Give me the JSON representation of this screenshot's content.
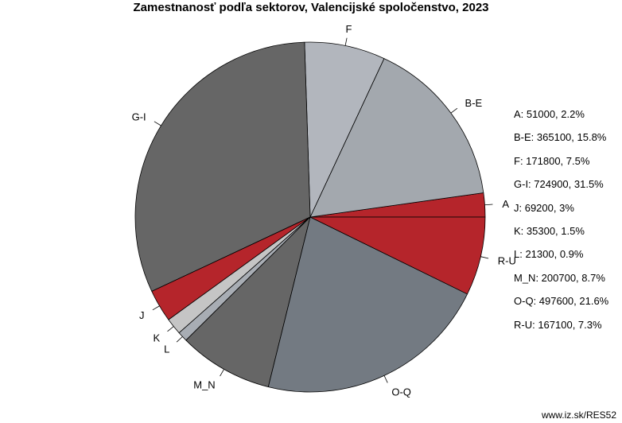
{
  "chart_data": {
    "type": "pie",
    "title": "Zamestnanosť podľa sektorov, Valencijské spoločenstvo, 2023",
    "slices": [
      {
        "label": "A",
        "value": 51000,
        "percent": "2.2%",
        "color": "#b5252b"
      },
      {
        "label": "B-E",
        "value": 365100,
        "percent": "15.8%",
        "color": "#a3a8ae"
      },
      {
        "label": "F",
        "value": 171800,
        "percent": "7.5%",
        "color": "#b2b6bd"
      },
      {
        "label": "G-I",
        "value": 724900,
        "percent": "31.5%",
        "color": "#666666"
      },
      {
        "label": "J",
        "value": 69200,
        "percent": "3%",
        "color": "#b5252b"
      },
      {
        "label": "K",
        "value": 35300,
        "percent": "1.5%",
        "color": "#c5c5c5"
      },
      {
        "label": "L",
        "value": 21300,
        "percent": "0.9%",
        "color": "#a8adb4"
      },
      {
        "label": "M_N",
        "value": 200700,
        "percent": "8.7%",
        "color": "#666666"
      },
      {
        "label": "O-Q",
        "value": 497600,
        "percent": "21.6%",
        "color": "#737a82"
      },
      {
        "label": "R-U",
        "value": 167100,
        "percent": "7.3%",
        "color": "#b5252b"
      }
    ],
    "legend_items": [
      "A: 51000, 2.2%",
      "B-E: 365100, 15.8%",
      "F: 171800, 7.5%",
      "G-I: 724900, 31.5%",
      "J: 69200, 3%",
      "K: 35300, 1.5%",
      "L: 21300, 0.9%",
      "M_N: 200700, 8.7%",
      "O-Q: 497600, 21.6%",
      "R-U: 167100, 7.3%"
    ],
    "legend_placement": "right",
    "start_direction": "east",
    "order": "counterclockwise"
  },
  "source": "www.iz.sk/RES52"
}
